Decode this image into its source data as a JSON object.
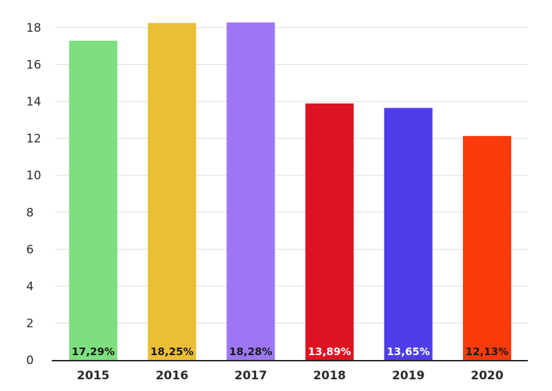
{
  "chart_data": {
    "type": "bar",
    "title": "",
    "xlabel": "",
    "ylabel": "",
    "ylim": [
      0,
      18
    ],
    "yticks": [
      0,
      2,
      4,
      6,
      8,
      10,
      12,
      14,
      16,
      18
    ],
    "grid": true,
    "categories": [
      "2015",
      "2016",
      "2017",
      "2018",
      "2019",
      "2020"
    ],
    "values": [
      17.29,
      18.25,
      18.28,
      13.89,
      13.65,
      12.13
    ],
    "data_labels": [
      "17,29%",
      "18,25%",
      "18,28%",
      "13,89%",
      "13,65%",
      "12,13%"
    ],
    "colors": [
      "#7ddf7f",
      "#ebbe35",
      "#9d76f4",
      "#dd1321",
      "#4f3de8",
      "#fb3a0c"
    ],
    "label_colors": [
      "#1a1a1a",
      "#1a1a1a",
      "#1a1a1a",
      "#ffffff",
      "#ffffff",
      "#1a1a1a"
    ],
    "gridline_color": "#dcdcdc",
    "axis_color": "#222222"
  }
}
